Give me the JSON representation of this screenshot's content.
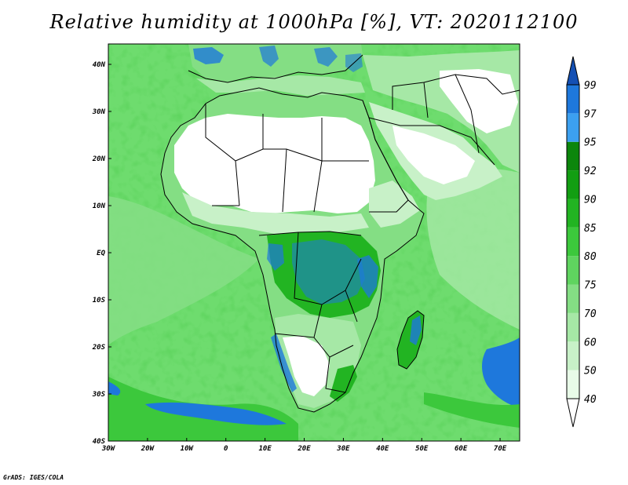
{
  "title": "Relative humidity at 1000hPa [%], VT: 2020112100",
  "credit": "GrADS: IGES/COLA",
  "map": {
    "lon_range": [
      -30,
      75
    ],
    "lat_range": [
      -40,
      45
    ],
    "lon_ticks": [
      "30W",
      "20W",
      "10W",
      "0",
      "10E",
      "20E",
      "30E",
      "40E",
      "50E",
      "60E",
      "70E"
    ],
    "lat_ticks": [
      "40N",
      "30N",
      "20N",
      "10N",
      "EQ",
      "10S",
      "20S",
      "30S",
      "40S"
    ]
  },
  "colorbar": {
    "levels": [
      "40",
      "50",
      "60",
      "70",
      "75",
      "80",
      "85",
      "90",
      "92",
      "95",
      "97",
      "99"
    ],
    "colors": [
      "#e8fbe8",
      "#c8f1c8",
      "#a6e8a6",
      "#84de84",
      "#5fd45f",
      "#3cc83c",
      "#22b422",
      "#129e12",
      "#0c860c",
      "#3ca0f0",
      "#1e78dc",
      "#1450b4"
    ]
  },
  "colors": {
    "land_dry": "#ffffff",
    "ocean_base": "#6edc6e",
    "border": "#000000"
  }
}
